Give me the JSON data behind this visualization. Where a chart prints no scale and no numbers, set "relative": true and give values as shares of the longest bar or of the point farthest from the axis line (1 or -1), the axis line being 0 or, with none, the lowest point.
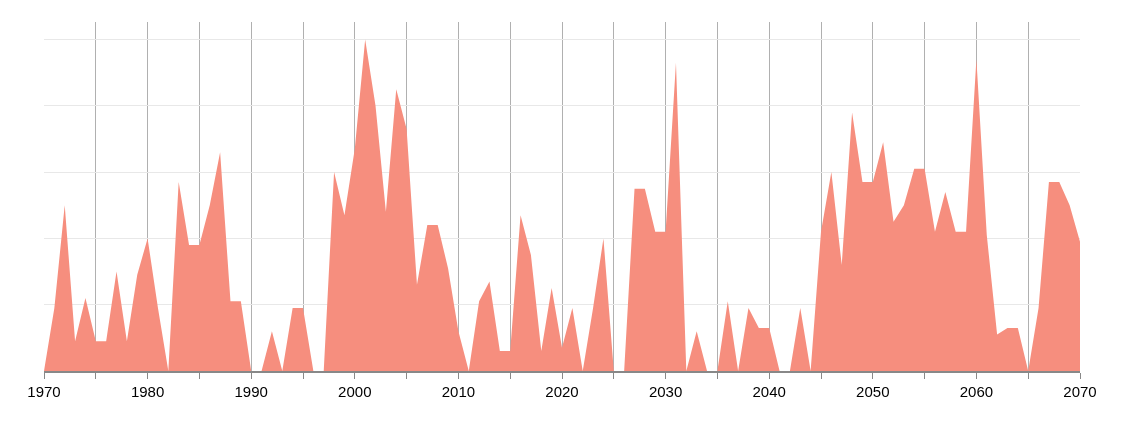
{
  "chart_data": {
    "type": "area",
    "relative": true,
    "color": "#f68e7e",
    "grid": true,
    "xlim": [
      1970,
      2070
    ],
    "xticks": [
      1970,
      {
        "value": 1975,
        "label": null
      },
      1980,
      {
        "value": 1985,
        "label": null
      },
      1990,
      {
        "value": 1995,
        "label": null
      },
      2000,
      {
        "value": 2005,
        "label": null
      },
      2010,
      {
        "value": 2015,
        "label": null
      },
      2020,
      {
        "value": 2025,
        "label": null
      },
      2030,
      {
        "value": 2035,
        "label": null
      },
      2040,
      {
        "value": 2045,
        "label": null
      },
      2050,
      {
        "value": 2055,
        "label": null
      },
      2060,
      {
        "value": 2065,
        "label": null
      },
      2070
    ],
    "x": [
      1970,
      1971,
      1972,
      1973,
      1974,
      1975,
      1976,
      1977,
      1978,
      1979,
      1980,
      1981,
      1982,
      1983,
      1984,
      1985,
      1986,
      1987,
      1988,
      1989,
      1990,
      1991,
      1992,
      1993,
      1994,
      1995,
      1996,
      1997,
      1998,
      1999,
      2000,
      2001,
      2002,
      2003,
      2004,
      2005,
      2006,
      2007,
      2008,
      2009,
      2010,
      2011,
      2012,
      2013,
      2014,
      2015,
      2016,
      2017,
      2018,
      2019,
      2020,
      2021,
      2022,
      2023,
      2024,
      2025,
      2026,
      2027,
      2028,
      2029,
      2030,
      2031,
      2032,
      2033,
      2034,
      2035,
      2036,
      2037,
      2038,
      2039,
      2040,
      2041,
      2042,
      2043,
      2044,
      2045,
      2046,
      2047,
      2048,
      2049,
      2050,
      2051,
      2052,
      2053,
      2054,
      2055,
      2056,
      2057,
      2058,
      2059,
      2060,
      2061,
      2062,
      2063,
      2064,
      2065,
      2066,
      2067,
      2068,
      2069,
      2070
    ],
    "values": [
      0,
      0.19,
      0.5,
      0.09,
      0.22,
      0.09,
      0.09,
      0.3,
      0.09,
      0.29,
      0.4,
      0.19,
      0,
      0.57,
      0.38,
      0.38,
      0.5,
      0.66,
      0.21,
      0.21,
      0,
      0,
      0.12,
      0,
      0.19,
      0.19,
      0,
      0,
      0.6,
      0.47,
      0.67,
      1,
      0.8,
      0.48,
      0.85,
      0.73,
      0.26,
      0.44,
      0.44,
      0.31,
      0.12,
      0,
      0.21,
      0.27,
      0.06,
      0.06,
      0.47,
      0.35,
      0.06,
      0.25,
      0.07,
      0.19,
      0,
      0.19,
      0.4,
      0,
      0,
      0.55,
      0.55,
      0.42,
      0.42,
      0.93,
      0,
      0.12,
      0,
      0,
      0.21,
      0,
      0.19,
      0.13,
      0.13,
      0,
      0,
      0.19,
      0,
      0.42,
      0.6,
      0.32,
      0.78,
      0.57,
      0.57,
      0.69,
      0.45,
      0.5,
      0.61,
      0.61,
      0.42,
      0.54,
      0.42,
      0.42,
      0.94,
      0.41,
      0.11,
      0.13,
      0.13,
      0,
      0.19,
      0.57,
      0.57,
      0.5,
      0.39
    ]
  }
}
